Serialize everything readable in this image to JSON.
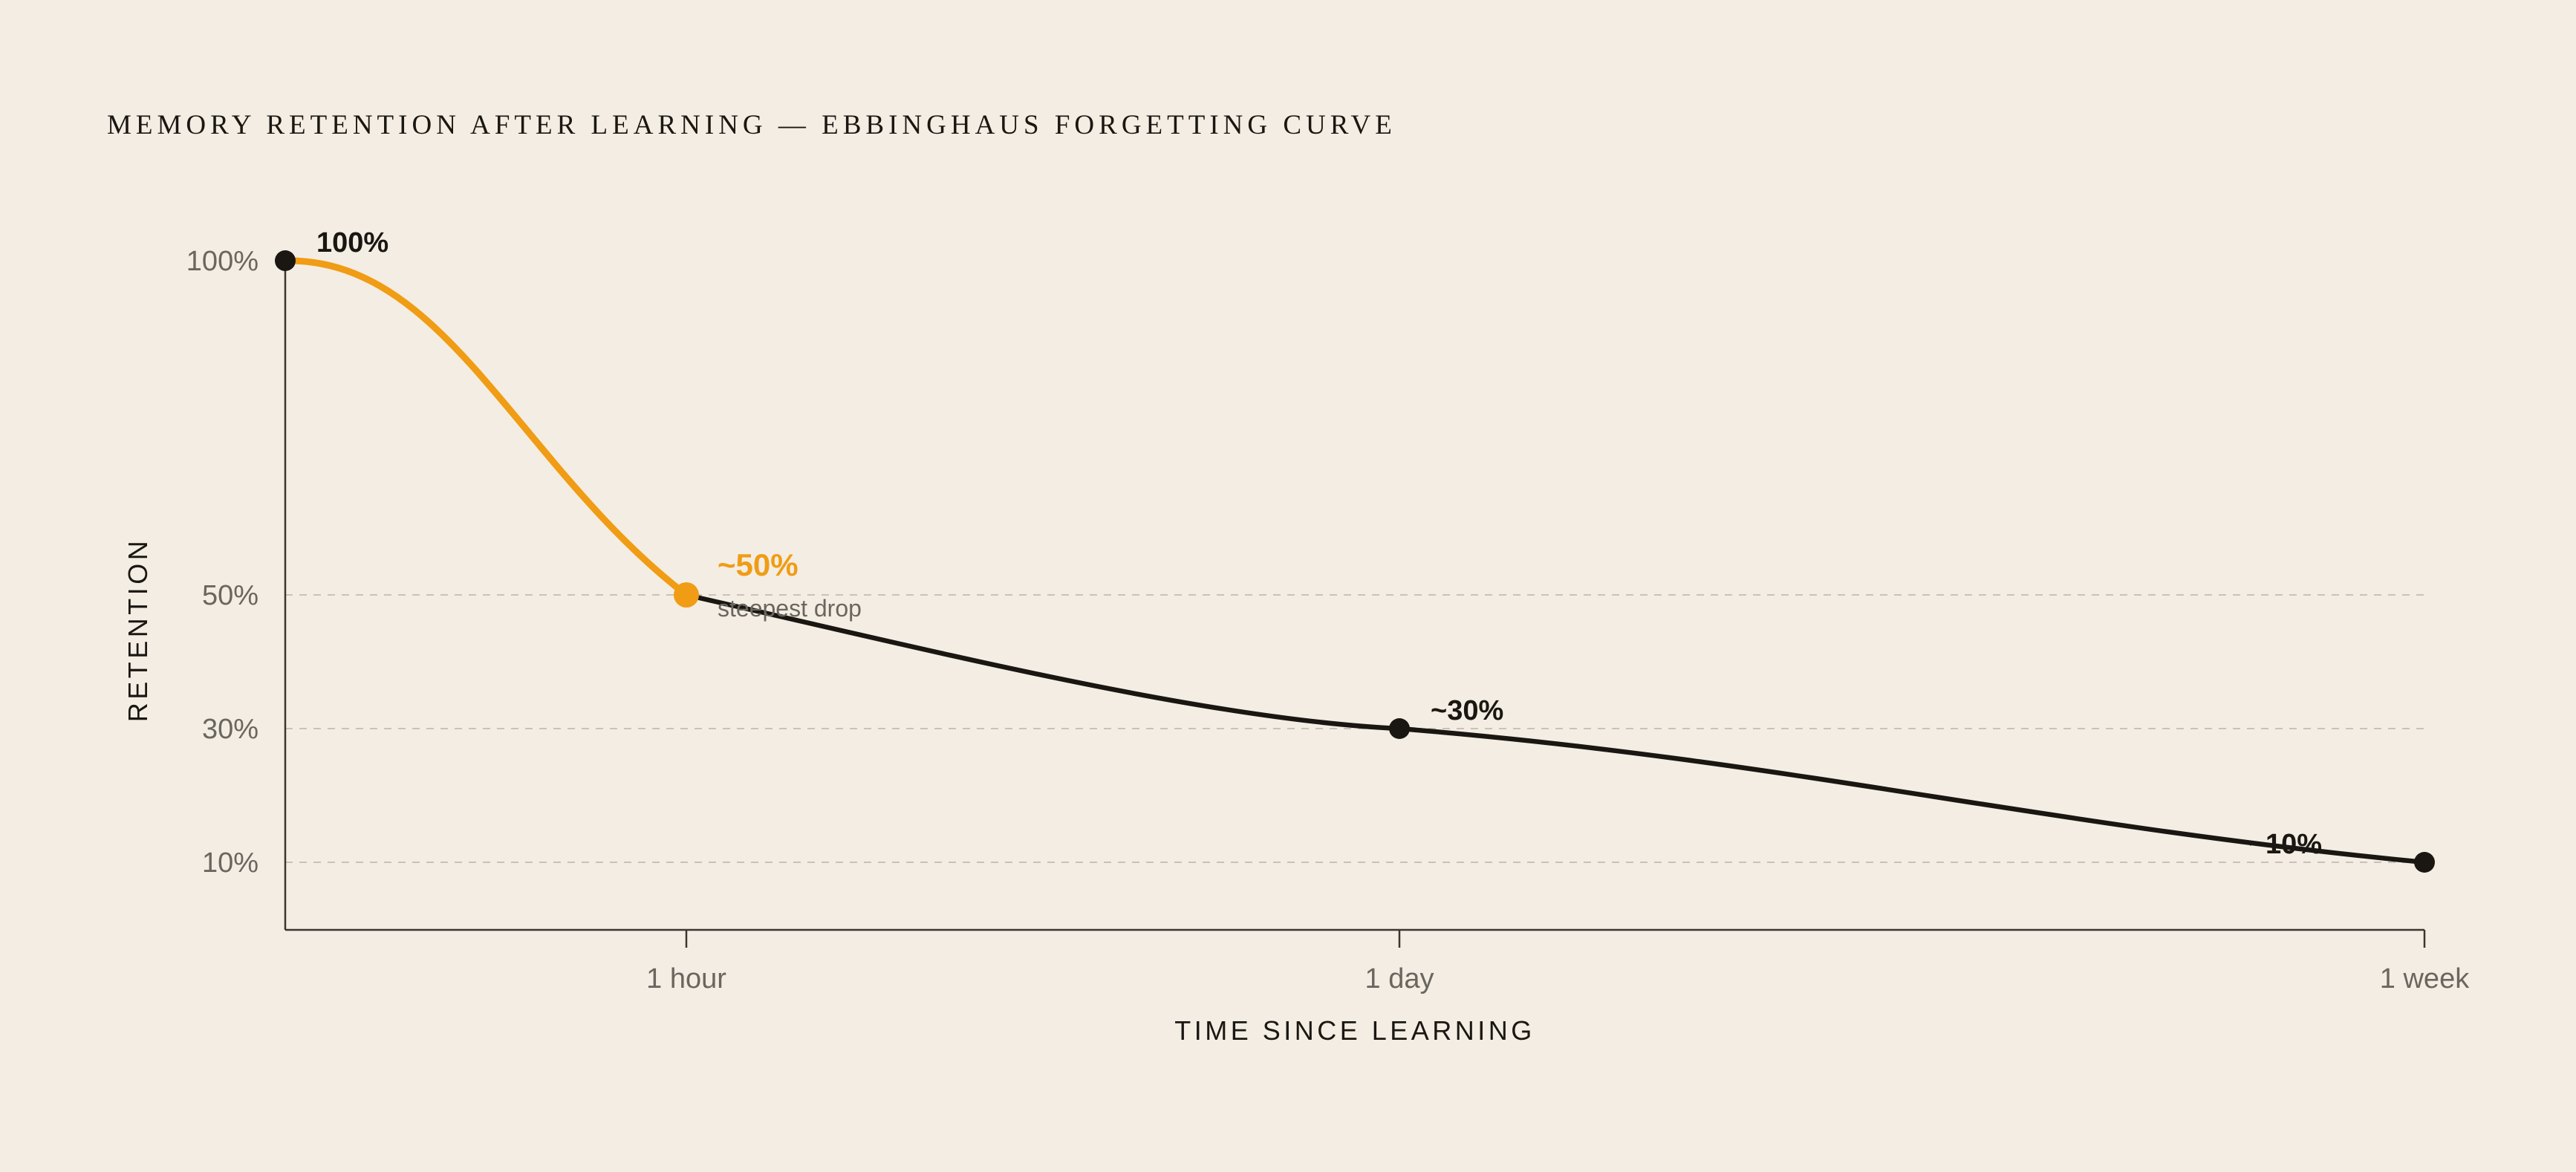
{
  "chart_data": {
    "type": "line",
    "title": "MEMORY RETENTION AFTER LEARNING — EBBINGHAUS FORGETTING CURVE",
    "xlabel": "TIME SINCE LEARNING",
    "ylabel": "RETENTION",
    "x_categories": [
      "0",
      "1 hour",
      "1 day",
      "1 week"
    ],
    "x_ticks": [
      {
        "value": 1,
        "label": "1 hour"
      },
      {
        "value": 2,
        "label": "1 day"
      },
      {
        "value": 3,
        "label": "1 week"
      }
    ],
    "y_ticks": [
      {
        "value": 100,
        "label": "100%"
      },
      {
        "value": 50,
        "label": "50%"
      },
      {
        "value": 30,
        "label": "30%"
      },
      {
        "value": 10,
        "label": "10%"
      }
    ],
    "ylim": [
      0,
      100
    ],
    "gridlines_y": [
      50,
      30,
      10
    ],
    "series": [
      {
        "points": [
          {
            "x": 0,
            "y": 100,
            "label": "100%"
          },
          {
            "x": 1,
            "y": 50,
            "label": "~50%"
          },
          {
            "x": 2,
            "y": 30,
            "label": "~30%"
          },
          {
            "x": 3,
            "y": 10,
            "label": "~10%"
          }
        ]
      }
    ],
    "highlight": {
      "from_x": 0,
      "to_x": 1,
      "point_x": 1
    },
    "annotations": [
      {
        "x": 1,
        "y": 50,
        "text": "steepest drop"
      }
    ],
    "colors": {
      "background": "#f4ede3",
      "line": "#1a1712",
      "accent": "#f09c14",
      "axis": "#6a6660",
      "grid": "#c9c2b8"
    }
  }
}
